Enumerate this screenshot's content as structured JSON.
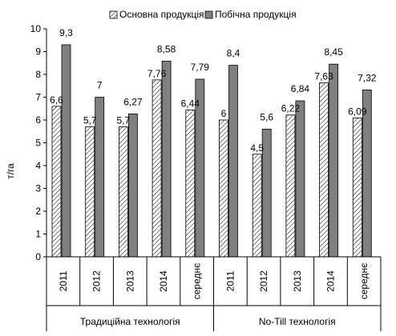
{
  "chart_data": {
    "type": "bar",
    "ylabel": "т/га",
    "ylim": [
      0,
      10
    ],
    "yticks": [
      0,
      1,
      2,
      3,
      4,
      5,
      6,
      7,
      8,
      9,
      10
    ],
    "grid": false,
    "legend_position": "top-center",
    "groups": [
      {
        "label": "Традиційна технологія",
        "categories": [
          "2011",
          "2012",
          "2013",
          "2014",
          "середнє"
        ]
      },
      {
        "label": "No-Till технологія",
        "categories": [
          "2011",
          "2012",
          "2013",
          "2014",
          "середнє"
        ]
      }
    ],
    "series": [
      {
        "name": "Основна продукція",
        "pattern": "hatched",
        "values": [
          6.6,
          5.7,
          5.7,
          7.76,
          6.44,
          6.0,
          4.5,
          6.22,
          7.63,
          6.09
        ],
        "labels": [
          "6,6",
          "5,7",
          "5,7",
          "7,76",
          "6,44",
          "6",
          "4,5",
          "6,22",
          "7,63",
          "6,09"
        ]
      },
      {
        "name": "Побічна продукція",
        "color": "#808080",
        "values": [
          9.3,
          7.0,
          6.27,
          8.58,
          7.79,
          8.4,
          5.6,
          6.84,
          8.45,
          7.32
        ],
        "labels": [
          "9,3",
          "7",
          "6,27",
          "8,58",
          "7,79",
          "8,4",
          "5,6",
          "6,84",
          "8,45",
          "7,32"
        ]
      }
    ]
  }
}
